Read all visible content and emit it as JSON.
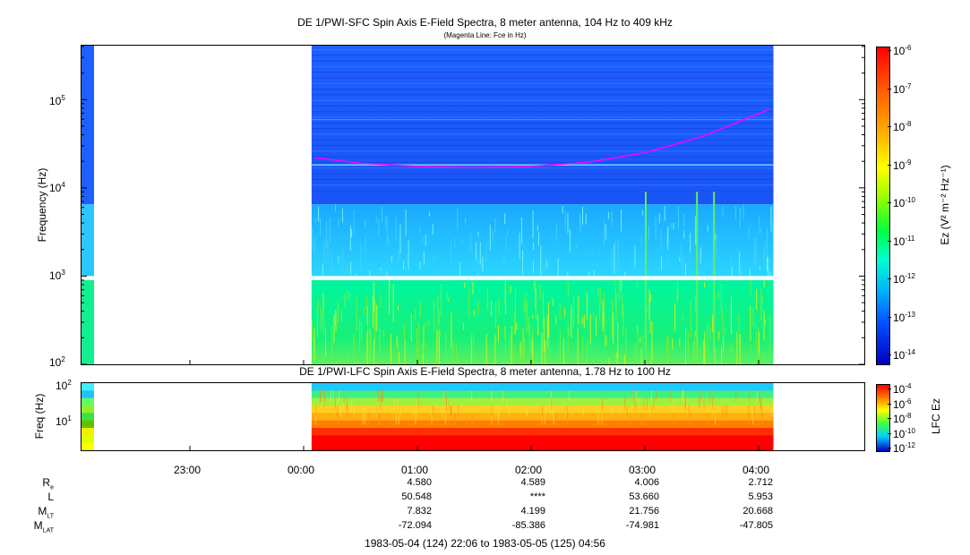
{
  "chart_data": [
    {
      "type": "heatmap",
      "title": "DE 1/PWI-SFC  Spin Axis E-Field Spectra, 8 meter antenna, 104 Hz to 409 kHz",
      "subtitle": "(Magenta Line: Fce in Hz)",
      "ylabel": "Frequency (Hz)",
      "yscale": "log",
      "ylim": [
        100,
        409000
      ],
      "yticks": [
        {
          "value": 100,
          "label": "10",
          "exp": "2"
        },
        {
          "value": 1000,
          "label": "10",
          "exp": "3"
        },
        {
          "value": 10000,
          "label": "10",
          "exp": "4"
        },
        {
          "value": 100000,
          "label": "10",
          "exp": "5"
        }
      ],
      "colorbar": {
        "label": "Ez (V² m⁻² Hz⁻¹)",
        "scale": "log",
        "ticks": [
          {
            "label": "10",
            "exp": "-6"
          },
          {
            "label": "10",
            "exp": "-7"
          },
          {
            "label": "10",
            "exp": "-8"
          },
          {
            "label": "10",
            "exp": "-9"
          },
          {
            "label": "10",
            "exp": "-10"
          },
          {
            "label": "10",
            "exp": "-11"
          },
          {
            "label": "10",
            "exp": "-12"
          },
          {
            "label": "10",
            "exp": "-13"
          },
          {
            "label": "10",
            "exp": "-14"
          }
        ]
      },
      "fce_line": {
        "color": "#ff00ff",
        "time_hours": [
          0.1,
          0.5,
          1.0,
          1.5,
          2.0,
          2.5,
          3.0,
          3.5,
          4.1
        ],
        "freq_hz": [
          22000,
          19000,
          17500,
          17000,
          17500,
          19500,
          25000,
          38000,
          78000
        ]
      }
    },
    {
      "type": "heatmap",
      "title": "DE 1/PWI-LFC  Spin Axis E-Field Spectra, 8 meter antenna, 1.78 Hz to 100 Hz",
      "ylabel": "Freq (Hz)",
      "yscale": "log",
      "ylim": [
        1.78,
        100
      ],
      "yticks": [
        {
          "value": 10,
          "label": "10",
          "exp": "1"
        },
        {
          "value": 100,
          "label": "10",
          "exp": "2"
        }
      ],
      "colorbar": {
        "label": "LFC Ez",
        "scale": "log",
        "ticks": [
          {
            "label": "10",
            "exp": "-4"
          },
          {
            "label": "10",
            "exp": "-6"
          },
          {
            "label": "10",
            "exp": "-8"
          },
          {
            "label": "10",
            "exp": "-10"
          },
          {
            "label": "10",
            "exp": "-12"
          }
        ]
      }
    }
  ],
  "time_axis": {
    "start": "1983-05-04 22:06",
    "end": "1983-05-05 04:56",
    "ticks": [
      {
        "hour": 23,
        "label": "23:00"
      },
      {
        "hour": 24,
        "label": "00:00"
      },
      {
        "hour": 25,
        "label": "01:00"
      },
      {
        "hour": 26,
        "label": "02:00"
      },
      {
        "hour": 27,
        "label": "03:00"
      },
      {
        "hour": 28,
        "label": "04:00"
      }
    ]
  },
  "ephemeris": {
    "labels": [
      {
        "text": "R",
        "sub": "e"
      },
      {
        "text": "L",
        "sub": ""
      },
      {
        "text": "M",
        "sub": "LT"
      },
      {
        "text": "M",
        "sub": "LAT"
      }
    ],
    "columns": [
      {
        "time": "01:00",
        "values": [
          "4.580",
          "50.548",
          "7.832",
          "-72.094"
        ]
      },
      {
        "time": "02:00",
        "values": [
          "4.589",
          "****",
          "4.199",
          "-85.386"
        ]
      },
      {
        "time": "03:00",
        "values": [
          "4.006",
          "53.660",
          "21.756",
          "-74.981"
        ]
      },
      {
        "time": "04:00",
        "values": [
          "2.712",
          "5.953",
          "20.668",
          "-47.805"
        ]
      }
    ]
  },
  "footer": "1983-05-04 (124) 22:06 to 1983-05-05 (125) 04:56"
}
